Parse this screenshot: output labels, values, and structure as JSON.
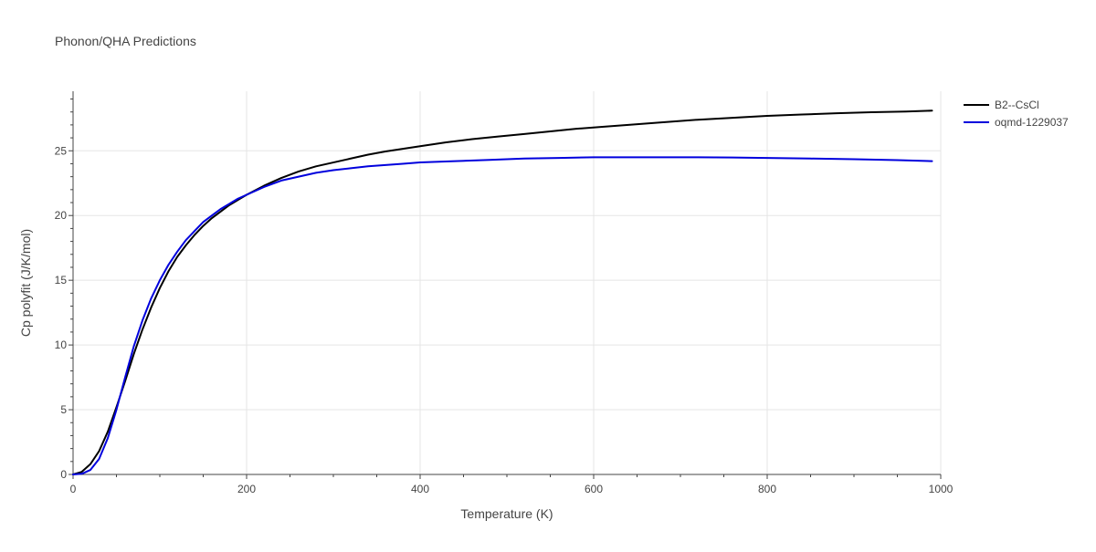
{
  "chart_data": {
    "type": "line",
    "title": "Phonon/QHA Predictions",
    "xlabel": "Temperature (K)",
    "ylabel": "Cp polyfit (J/K/mol)",
    "xlim": [
      0,
      1000
    ],
    "ylim": [
      0,
      29.6
    ],
    "x_ticks": [
      0,
      200,
      400,
      600,
      800,
      1000
    ],
    "y_ticks": [
      0,
      5,
      10,
      15,
      20,
      25
    ],
    "x_tick_labels": [
      "0",
      "200",
      "400",
      "600",
      "800",
      "1000"
    ],
    "y_tick_labels": [
      "0",
      "5",
      "10",
      "15",
      "20",
      "25"
    ],
    "grid": true,
    "legend_position": "top-right",
    "series": [
      {
        "name": "B2--CsCl",
        "color": "#000000",
        "x": [
          0,
          10,
          20,
          30,
          40,
          50,
          60,
          70,
          80,
          90,
          100,
          110,
          120,
          130,
          140,
          150,
          160,
          170,
          180,
          190,
          200,
          220,
          240,
          260,
          280,
          300,
          320,
          340,
          360,
          380,
          400,
          430,
          460,
          490,
          520,
          550,
          580,
          610,
          640,
          680,
          720,
          760,
          800,
          840,
          880,
          920,
          960,
          990
        ],
        "y": [
          0,
          0.2,
          0.8,
          1.8,
          3.3,
          5.2,
          7.2,
          9.3,
          11.2,
          12.9,
          14.4,
          15.7,
          16.8,
          17.7,
          18.5,
          19.2,
          19.8,
          20.3,
          20.8,
          21.2,
          21.6,
          22.3,
          22.9,
          23.4,
          23.8,
          24.1,
          24.4,
          24.7,
          24.95,
          25.15,
          25.35,
          25.65,
          25.9,
          26.1,
          26.3,
          26.5,
          26.7,
          26.85,
          27.0,
          27.2,
          27.4,
          27.55,
          27.7,
          27.8,
          27.9,
          27.98,
          28.03,
          28.1
        ]
      },
      {
        "name": "oqmd-1229037",
        "color": "#0000dd",
        "x": [
          0,
          10,
          20,
          30,
          40,
          50,
          60,
          70,
          80,
          90,
          100,
          110,
          120,
          130,
          140,
          150,
          160,
          170,
          180,
          190,
          200,
          220,
          240,
          260,
          280,
          300,
          320,
          340,
          360,
          380,
          400,
          440,
          480,
          520,
          560,
          600,
          640,
          680,
          720,
          760,
          800,
          850,
          900,
          950,
          990
        ],
        "y": [
          0,
          0.05,
          0.35,
          1.2,
          2.8,
          5.0,
          7.5,
          9.9,
          11.9,
          13.6,
          15.0,
          16.2,
          17.2,
          18.1,
          18.8,
          19.5,
          20.0,
          20.5,
          20.9,
          21.3,
          21.6,
          22.2,
          22.7,
          23.0,
          23.3,
          23.5,
          23.65,
          23.8,
          23.9,
          24.0,
          24.1,
          24.2,
          24.3,
          24.4,
          24.45,
          24.5,
          24.5,
          24.5,
          24.5,
          24.48,
          24.45,
          24.4,
          24.35,
          24.28,
          24.2
        ]
      }
    ]
  }
}
